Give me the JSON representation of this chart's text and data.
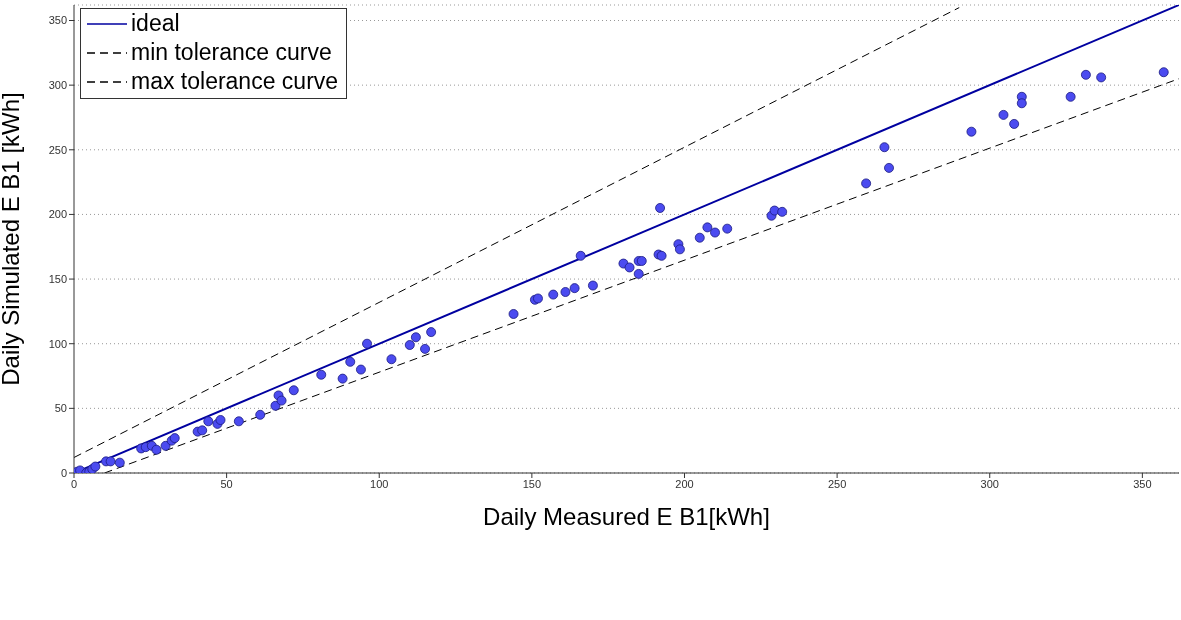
{
  "chart_data": {
    "type": "scatter",
    "xlabel": "Daily Measured E B1[kWh]",
    "ylabel": "Daily Simulated E B1 [kWh]",
    "xlim": [
      0,
      362
    ],
    "ylim": [
      0,
      362
    ],
    "xticks": [
      0,
      50,
      100,
      150,
      200,
      250,
      300,
      350
    ],
    "yticks": [
      0,
      50,
      100,
      150,
      200,
      250,
      300,
      350
    ],
    "grid": "y",
    "legend": "top left",
    "series": [
      {
        "name": "ideal",
        "type": "line",
        "color": "#0000a0",
        "line_style": "solid",
        "marker": "none",
        "x": [
          0,
          362
        ],
        "values": [
          0,
          362
        ]
      },
      {
        "name": "min tolerance curve",
        "type": "line",
        "color": "#000000",
        "line_style": "dashed",
        "marker": "none",
        "x": [
          10,
          362
        ],
        "values": [
          0,
          305
        ]
      },
      {
        "name": "max tolerance curve",
        "type": "line",
        "color": "#000000",
        "line_style": "dashed",
        "marker": "none",
        "x": [
          0,
          290
        ],
        "values": [
          12,
          360
        ]
      },
      {
        "color": "#4b4bf0",
        "marker": "circle",
        "x": [
          1,
          2,
          4,
          5,
          6,
          7,
          10.5,
          12,
          15,
          22,
          23.5,
          25.5,
          27,
          30,
          32,
          33,
          40.5,
          42,
          44,
          47,
          48,
          54,
          61,
          66,
          67,
          68,
          72,
          81,
          88,
          90.5,
          94,
          96,
          104,
          110,
          112,
          115,
          117,
          144,
          151,
          152,
          157,
          161,
          164,
          166,
          170,
          180,
          182,
          185,
          186,
          185,
          192,
          191.5,
          192.5,
          198,
          198.5,
          205,
          207.5,
          210,
          214,
          228.5,
          229.5,
          232,
          259.5,
          265.5,
          267,
          294,
          304.5,
          308,
          310.5,
          310.5,
          326.5,
          331.5,
          336.5,
          357
        ],
        "values": [
          1,
          2,
          0,
          1,
          3,
          5,
          9,
          9,
          8,
          19,
          20,
          21,
          18,
          21,
          25,
          27,
          32,
          33,
          40,
          38,
          41,
          40,
          45,
          52,
          60,
          56,
          64,
          76,
          73,
          86,
          80,
          100,
          88,
          99,
          105,
          96,
          109,
          123,
          134,
          135,
          138,
          140,
          143,
          168,
          145,
          162,
          159,
          164,
          164,
          154,
          205,
          169,
          168,
          177,
          173,
          182,
          190,
          186,
          189,
          199,
          203,
          202,
          224,
          252,
          236,
          264,
          277,
          270,
          291,
          286,
          291,
          308,
          306,
          310
        ]
      }
    ]
  }
}
